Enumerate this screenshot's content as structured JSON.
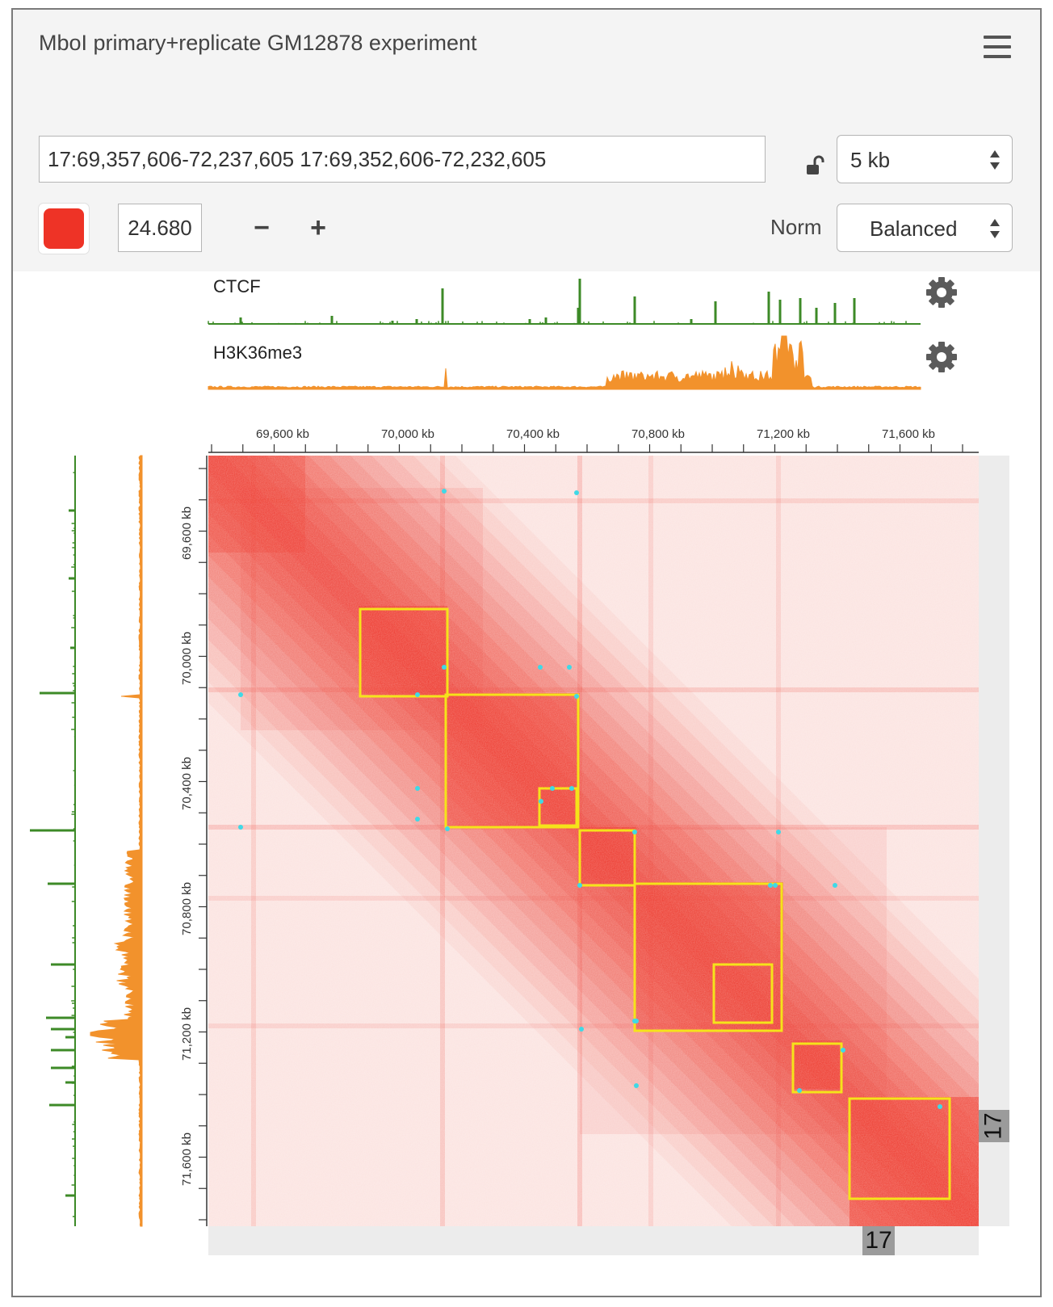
{
  "header": {
    "title": "MboI primary+replicate GM12878 experiment",
    "menu_icon": "hamburger-menu-icon"
  },
  "toolbar": {
    "locus_value": "17:69,357,606-72,237,605 17:69,352,606-72,232,605",
    "lock_icon": "unlock-icon",
    "resolution": "5 kb",
    "color_hex": "#ee3326",
    "color_value": "24.680",
    "minus_label": "−",
    "plus_label": "+",
    "norm_label": "Norm",
    "norm_value": "Balanced"
  },
  "tracks": [
    {
      "name": "CTCF",
      "color": "#3d8a27"
    },
    {
      "name": "H3K36me3",
      "color": "#f2922c"
    }
  ],
  "axis": {
    "x_ticks": [
      "69,600 kb",
      "70,000 kb",
      "70,400 kb",
      "70,800 kb",
      "71,200 kb",
      "71,600 kb"
    ],
    "y_ticks": [
      "69,600 kb",
      "70,000 kb",
      "70,400 kb",
      "70,800 kb",
      "71,200 kb",
      "71,600 kb"
    ],
    "chrom_label_x": "17",
    "chrom_label_y": "17"
  },
  "colors": {
    "heat": "#ee3326",
    "domain_box": "#f5e31a",
    "loop_dot": "#3fd9e6"
  }
}
